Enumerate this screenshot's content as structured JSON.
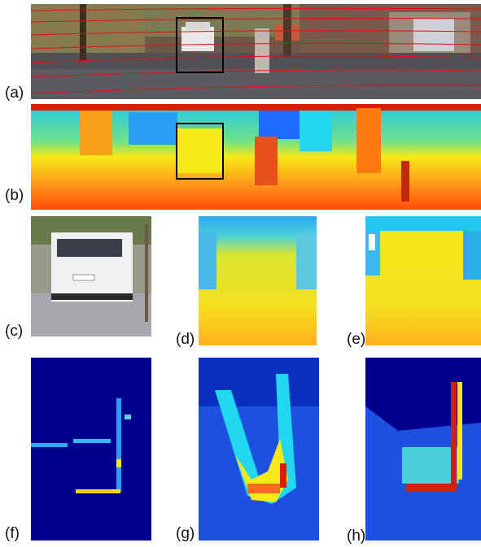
{
  "panel_labels": {
    "a": "(a)",
    "b": "(b)",
    "c": "(c)",
    "d": "(d)",
    "e": "(e)",
    "f": "(f)",
    "g": "(g)",
    "h": "(h)"
  },
  "colors": {
    "jet_dark_blue": "#00008f",
    "jet_blue": "#1e6bff",
    "jet_cyan": "#22d8f0",
    "jet_yellow": "#f5ea17",
    "jet_orange": "#ff8a1a",
    "jet_red": "#d81e05",
    "selection_box": "#000000",
    "scanline": "#e01010"
  },
  "panels": [
    {
      "id": "a",
      "content": "street-scene-photo-with-scanlines"
    },
    {
      "id": "b",
      "content": "disparity-map-jet"
    },
    {
      "id": "c",
      "content": "van-crop-photo"
    },
    {
      "id": "d",
      "content": "disparity-crop"
    },
    {
      "id": "e",
      "content": "disparity-crop-sharp"
    },
    {
      "id": "f",
      "content": "sparse-heatmap"
    },
    {
      "id": "g",
      "content": "heatmap-diffuse"
    },
    {
      "id": "h",
      "content": "heatmap-edges"
    }
  ]
}
